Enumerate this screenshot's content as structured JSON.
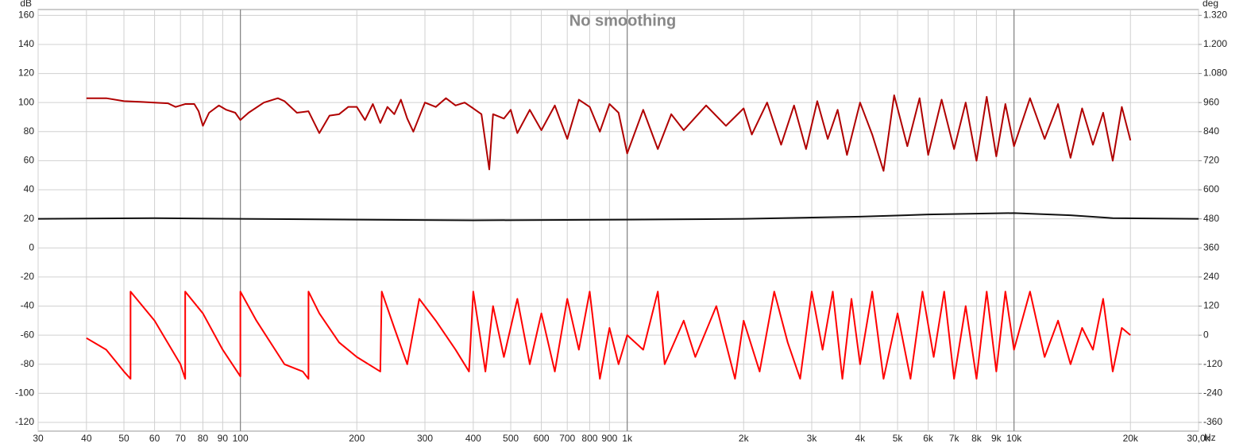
{
  "chart_data": {
    "type": "line",
    "title": "No smoothing",
    "y_label": "dB",
    "y2_label": "deg",
    "x_label": "Hz",
    "log_x": true,
    "grid": true,
    "xlim": [
      30,
      30000
    ],
    "ylim": [
      -126,
      164
    ],
    "y2lim": [
      -396,
      1344
    ],
    "xticks": [
      30,
      40,
      50,
      60,
      70,
      80,
      90,
      100,
      200,
      300,
      400,
      500,
      600,
      700,
      800,
      900,
      {
        "value": 1000,
        "label": "1k"
      },
      {
        "value": 2000,
        "label": "2k"
      },
      {
        "value": 3000,
        "label": "3k"
      },
      {
        "value": 4000,
        "label": "4k"
      },
      {
        "value": 5000,
        "label": "5k"
      },
      {
        "value": 6000,
        "label": "6k"
      },
      {
        "value": 7000,
        "label": "7k"
      },
      {
        "value": 8000,
        "label": "8k"
      },
      {
        "value": 9000,
        "label": "9k"
      },
      {
        "value": 10000,
        "label": "10k"
      },
      {
        "value": 20000,
        "label": "20k"
      },
      {
        "value": 30000,
        "label": "30,0k"
      }
    ],
    "yticks": [
      160,
      140,
      120,
      100,
      80,
      60,
      40,
      20,
      0,
      -20,
      -40,
      -60,
      -80,
      -100,
      -120
    ],
    "y2ticks": [
      {
        "value": 1320,
        "label": "1.320"
      },
      {
        "value": 1200,
        "label": "1.200"
      },
      {
        "value": 1080,
        "label": "1.080"
      },
      960,
      840,
      720,
      600,
      480,
      360,
      240,
      120,
      0,
      -120,
      -240,
      -360
    ],
    "series": [
      {
        "color": "#b00000",
        "axis": "y",
        "x": [
          40,
          45,
          50,
          55,
          60,
          65,
          68,
          72,
          76,
          78,
          80,
          83,
          88,
          92,
          97,
          100,
          105,
          115,
          125,
          130,
          140,
          150,
          160,
          170,
          180,
          190,
          200,
          210,
          220,
          230,
          240,
          250,
          260,
          270,
          280,
          300,
          320,
          340,
          360,
          380,
          400,
          420,
          440,
          450,
          480,
          500,
          520,
          560,
          600,
          650,
          700,
          750,
          800,
          850,
          900,
          950,
          1000,
          1100,
          1200,
          1300,
          1400,
          1600,
          1800,
          2000,
          2100,
          2300,
          2500,
          2700,
          2900,
          3100,
          3300,
          3500,
          3700,
          4000,
          4300,
          4600,
          4900,
          5300,
          5700,
          6000,
          6500,
          7000,
          7500,
          8000,
          8500,
          9000,
          9500,
          10000,
          11000,
          12000,
          13000,
          14000,
          15000,
          16000,
          17000,
          18000,
          19000,
          20000
        ],
        "values": [
          103,
          103,
          101,
          100.5,
          100,
          99.5,
          97,
          99,
          99,
          94,
          84,
          93,
          98,
          95,
          93,
          88,
          93,
          100,
          103,
          101,
          93,
          94,
          79,
          91,
          92,
          97,
          97,
          88,
          99,
          86,
          97,
          92,
          102,
          89,
          80,
          100,
          97,
          103,
          98,
          100,
          96,
          92,
          54,
          92,
          89,
          95,
          79,
          95,
          81,
          98,
          75,
          102,
          97,
          80,
          99,
          93,
          65,
          95,
          68,
          92,
          81,
          98,
          84,
          96,
          78,
          100,
          71,
          98,
          68,
          101,
          75,
          95,
          64,
          100,
          78,
          53,
          105,
          70,
          103,
          64,
          102,
          68,
          100,
          60,
          104,
          63,
          99,
          70,
          103,
          75,
          99,
          62,
          96,
          71,
          93,
          60,
          97,
          74
        ]
      },
      {
        "color": "#111111",
        "axis": "y",
        "x": [
          30,
          60,
          100,
          200,
          400,
          1000,
          2000,
          4000,
          6000,
          10000,
          14000,
          18000,
          30000
        ],
        "values": [
          20,
          20.5,
          20,
          19.5,
          19,
          19.5,
          20,
          21.5,
          23,
          24,
          22.5,
          20.5,
          20
        ]
      },
      {
        "color": "#ff0000",
        "axis": "y2",
        "x": [
          40,
          45,
          50,
          52,
          52,
          60,
          70,
          72,
          72,
          80,
          90,
          100,
          100,
          110,
          130,
          145,
          150,
          150,
          160,
          180,
          200,
          230,
          232,
          250,
          270,
          290,
          320,
          360,
          390,
          400,
          430,
          450,
          480,
          520,
          560,
          600,
          650,
          700,
          750,
          800,
          850,
          900,
          950,
          1000,
          1100,
          1200,
          1250,
          1400,
          1500,
          1700,
          1900,
          2000,
          2200,
          2400,
          2600,
          2800,
          3000,
          3200,
          3400,
          3600,
          3800,
          4000,
          4300,
          4600,
          5000,
          5400,
          5800,
          6200,
          6600,
          7000,
          7500,
          8000,
          8500,
          9000,
          9500,
          10000,
          11000,
          12000,
          13000,
          14000,
          15000,
          16000,
          17000,
          18000,
          19000,
          20000
        ],
        "values": [
          -12,
          -60,
          -150,
          -180,
          180,
          60,
          -120,
          -180,
          180,
          90,
          -60,
          -170,
          180,
          60,
          -120,
          -150,
          -180,
          180,
          90,
          -30,
          -90,
          -150,
          180,
          30,
          -120,
          150,
          60,
          -60,
          -150,
          180,
          -150,
          120,
          -90,
          150,
          -120,
          90,
          -150,
          150,
          -60,
          180,
          -180,
          30,
          -120,
          0,
          -60,
          180,
          -120,
          60,
          -90,
          120,
          -180,
          60,
          -150,
          180,
          -30,
          -180,
          180,
          -60,
          180,
          -180,
          150,
          -120,
          180,
          -180,
          90,
          -180,
          180,
          -90,
          180,
          -180,
          120,
          -180,
          180,
          -150,
          180,
          -60,
          180,
          -90,
          60,
          -120,
          30,
          -60,
          150,
          -150,
          30,
          0
        ]
      }
    ]
  }
}
